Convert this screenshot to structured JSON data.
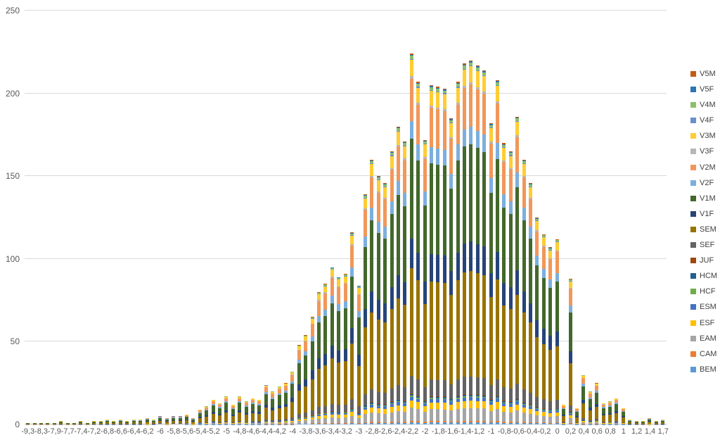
{
  "chart_data": {
    "type": "bar",
    "subtype": "stacked-column",
    "title": "",
    "xlabel": "",
    "ylabel": "",
    "grid": true,
    "background_color": "#FFFFFF",
    "gridline_color": "#D9D9D9",
    "axis_line_color": "#BFBFBF",
    "tick_label_color": "#595959",
    "legend_label_color": "#404040",
    "legend_position": "right",
    "y_axis": {
      "min": 0,
      "max": 250,
      "step": 50,
      "ticks": [
        0,
        50,
        100,
        150,
        200,
        250
      ]
    },
    "x_tick_labels": [
      "-9,3",
      "-8,3",
      "-7,9",
      "-7,7",
      "-7,4",
      "-7,2",
      "-6,8",
      "-6,6",
      "-6,4",
      "-6,2",
      "-6",
      "-5,8",
      "-5,6",
      "-5,4",
      "-5,2",
      "-5",
      "-4,8",
      "-4,6",
      "-4,4",
      "-4,2",
      "-4",
      "-3,8",
      "-3,6",
      "-3,4",
      "-3,2",
      "-3",
      "-2,8",
      "-2,6",
      "-2,4",
      "-2,2",
      "-2",
      "-1,8",
      "-1,6",
      "-1,4",
      "-1,2",
      "-1",
      "-0,8",
      "-0,6",
      "-0,4",
      "-0,2",
      "0",
      "0,2",
      "0,4",
      "0,6",
      "0,8",
      "1",
      "1,2",
      "1,4",
      "1,7"
    ],
    "x_label_interval": 2,
    "n_bars": 97,
    "bar_totals": [
      1,
      1,
      1,
      1,
      1,
      2,
      1,
      1,
      2,
      1,
      2,
      2,
      3,
      2,
      3,
      2,
      3,
      3,
      4,
      3,
      5,
      4,
      5,
      5,
      6,
      4,
      9,
      11,
      15,
      13,
      17,
      12,
      17,
      14,
      16,
      15,
      24,
      20,
      23,
      25,
      32,
      48,
      54,
      65,
      80,
      85,
      95,
      89,
      91,
      116,
      84,
      139,
      160,
      150,
      146,
      165,
      180,
      171,
      224,
      207,
      172,
      205,
      204,
      203,
      185,
      207,
      218,
      220,
      217,
      214,
      182,
      208,
      170,
      165,
      186,
      160,
      146,
      125,
      115,
      107,
      112,
      12,
      88,
      10,
      30,
      20,
      25,
      13,
      14,
      16,
      10,
      3,
      2,
      2,
      4,
      2,
      3
    ],
    "series_note": "stack order bottom-to-top; each segment value = fraction_of_total * bar total",
    "series": [
      {
        "name": "BEM",
        "color": "#5B9BD5",
        "fraction_of_total": 0.006
      },
      {
        "name": "CAM",
        "color": "#ED7D31",
        "fraction_of_total": 0.004
      },
      {
        "name": "EAM",
        "color": "#A5A5A5",
        "fraction_of_total": 0.035
      },
      {
        "name": "ESF",
        "color": "#FFC000",
        "fraction_of_total": 0.02
      },
      {
        "name": "ESM",
        "color": "#4472C4",
        "fraction_of_total": 0.01
      },
      {
        "name": "HCF",
        "color": "#70AD47",
        "fraction_of_total": 0.003
      },
      {
        "name": "HCM",
        "color": "#255E91",
        "fraction_of_total": 0.004
      },
      {
        "name": "JUF",
        "color": "#9E480E",
        "fraction_of_total": 0.002
      },
      {
        "name": "SEF",
        "color": "#636363",
        "fraction_of_total": 0.048
      },
      {
        "name": "SEM",
        "color": "#997300",
        "fraction_of_total": 0.29
      },
      {
        "name": "V1F",
        "color": "#264478",
        "fraction_of_total": 0.08
      },
      {
        "name": "V1M",
        "color": "#43682B",
        "fraction_of_total": 0.268
      },
      {
        "name": "V2F",
        "color": "#7CAFDD",
        "fraction_of_total": 0.048
      },
      {
        "name": "V2M",
        "color": "#F1975A",
        "fraction_of_total": 0.115
      },
      {
        "name": "V3F",
        "color": "#B7B7B7",
        "fraction_of_total": 0.006
      },
      {
        "name": "V3M",
        "color": "#FFCD33",
        "fraction_of_total": 0.044
      },
      {
        "name": "V4F",
        "color": "#698ED0",
        "fraction_of_total": 0.003
      },
      {
        "name": "V4M",
        "color": "#8CC168",
        "fraction_of_total": 0.008
      },
      {
        "name": "V5F",
        "color": "#2E75B6",
        "fraction_of_total": 0.003
      },
      {
        "name": "V5M",
        "color": "#C55A11",
        "fraction_of_total": 0.003
      }
    ],
    "legend_order_top_to_bottom": [
      "V5M",
      "V5F",
      "V4M",
      "V4F",
      "V3M",
      "V3F",
      "V2M",
      "V2F",
      "V1M",
      "V1F",
      "SEM",
      "SEF",
      "JUF",
      "HCM",
      "HCF",
      "ESM",
      "ESF",
      "EAM",
      "CAM",
      "BEM"
    ]
  }
}
